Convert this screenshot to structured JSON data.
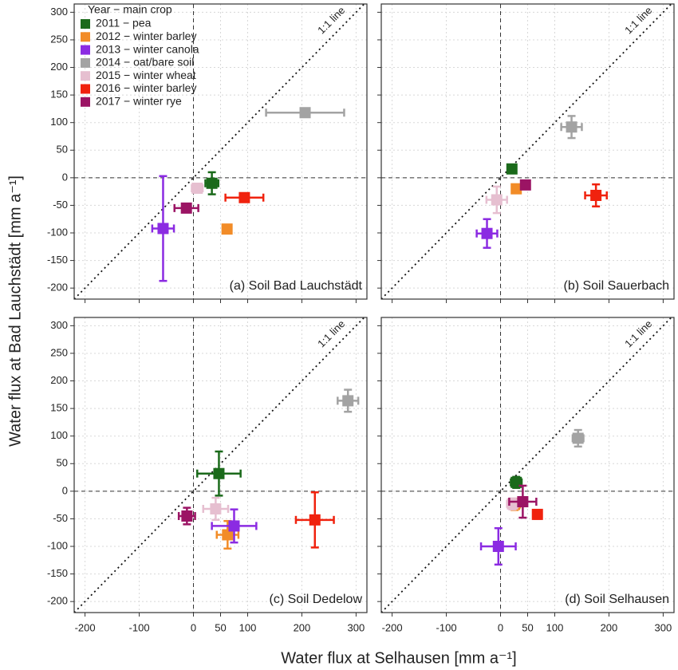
{
  "chart_data": {
    "type": "scatter",
    "xlabel": "Water flux at Selhausen [mm a⁻¹]",
    "ylabel": "Water flux at Bad Lauchstädt [mm a⁻¹]",
    "legend_title": "Year − main crop",
    "series_names": [
      "2011 − pea",
      "2012 − winter barley",
      "2013 − winter canola",
      "2014 − oat/bare soil",
      "2015 − winter wheat",
      "2016 − winter barley",
      "2017 − winter rye"
    ],
    "colors": [
      "#1b6a1b",
      "#f28c28",
      "#8b2be2",
      "#a3a3a3",
      "#e6bfd0",
      "#f0220e",
      "#9b1464"
    ],
    "grid": true,
    "panels": [
      {
        "title": "(a) Soil Bad Lauchstädt",
        "annotation": "1:1 line",
        "xlim": [
          -220,
          320
        ],
        "ylim": [
          -220,
          315
        ],
        "xticks": [
          -200,
          -100,
          0,
          50,
          100,
          200,
          300
        ],
        "yticks": [
          -200,
          -150,
          -100,
          -50,
          0,
          50,
          100,
          150,
          200,
          250,
          300
        ],
        "x": [
          34,
          62,
          -56,
          206,
          7,
          94,
          -13
        ],
        "xerr": [
          12,
          5,
          20,
          72,
          10,
          35,
          22
        ],
        "values": [
          -10,
          -93,
          -92,
          118,
          -19,
          -36,
          -55
        ],
        "yerr": [
          20,
          5,
          95,
          5,
          5,
          5,
          5
        ]
      },
      {
        "title": "(b) Soil Sauerbach",
        "annotation": "1:1 line",
        "xlim": [
          -220,
          320
        ],
        "ylim": [
          -220,
          315
        ],
        "xticks": [
          -200,
          -100,
          0,
          50,
          100,
          200,
          300
        ],
        "yticks": [
          -200,
          -150,
          -100,
          -50,
          0,
          50,
          100,
          150,
          200,
          250,
          300
        ],
        "x": [
          21,
          29,
          -25,
          131,
          -7,
          176,
          46
        ],
        "xerr": [
          5,
          5,
          19,
          19,
          19,
          20,
          5
        ],
        "values": [
          16,
          -20,
          -101,
          92,
          -40,
          -32,
          -13
        ],
        "yerr": [
          5,
          5,
          26,
          20,
          24,
          20,
          5
        ]
      },
      {
        "title": "(c) Soil Dedelow",
        "annotation": "1:1 line",
        "xlim": [
          -220,
          320
        ],
        "ylim": [
          -220,
          315
        ],
        "xticks": [
          -200,
          -100,
          0,
          50,
          100,
          200,
          300
        ],
        "yticks": [
          -200,
          -150,
          -100,
          -50,
          0,
          50,
          100,
          150,
          200,
          250,
          300
        ],
        "x": [
          47,
          63,
          75,
          285,
          41,
          224,
          -12
        ],
        "xerr": [
          40,
          20,
          41,
          19,
          23,
          35,
          15
        ],
        "values": [
          32,
          -79,
          -63,
          164,
          -32,
          -52,
          -45
        ],
        "yerr": [
          40,
          25,
          30,
          20,
          20,
          50,
          15
        ]
      },
      {
        "title": "(d) Soil Selhausen",
        "annotation": "1:1 line",
        "xlim": [
          -220,
          320
        ],
        "ylim": [
          -220,
          315
        ],
        "xticks": [
          -200,
          -100,
          0,
          50,
          100,
          200,
          300
        ],
        "yticks": [
          -200,
          -150,
          -100,
          -50,
          0,
          50,
          100,
          150,
          200,
          250,
          300
        ],
        "x": [
          29,
          26,
          -4,
          143,
          22,
          68,
          41
        ],
        "xerr": [
          10,
          10,
          32,
          10,
          10,
          8,
          25
        ],
        "values": [
          16,
          -24,
          -100,
          96,
          -23,
          -42,
          -19
        ],
        "yerr": [
          10,
          10,
          33,
          15,
          10,
          8,
          29
        ]
      }
    ]
  }
}
